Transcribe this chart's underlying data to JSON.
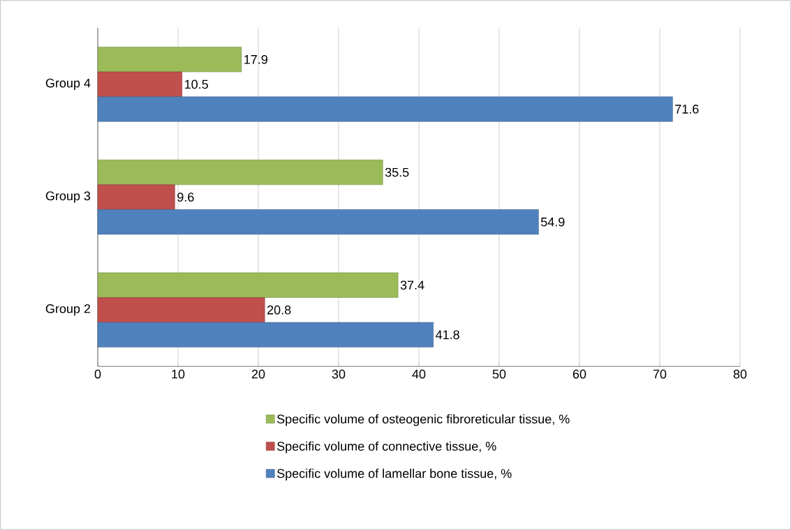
{
  "chart_data": {
    "type": "bar",
    "orientation": "horizontal",
    "categories": [
      "Group 4",
      "Group 3",
      "Group 2"
    ],
    "series": [
      {
        "name": "Specific volume of osteogenic fibroreticular tissue, %",
        "color": "#9bbb59",
        "values": [
          17.9,
          35.5,
          37.4
        ]
      },
      {
        "name": "Specific volume of connective tissue, %",
        "color": "#c0504d",
        "values": [
          10.5,
          9.6,
          20.8
        ]
      },
      {
        "name": "Specific volume of lamellar bone tissue, %",
        "color": "#4f81bd",
        "values": [
          71.6,
          54.9,
          41.8
        ]
      }
    ],
    "xlim": [
      0,
      80
    ],
    "xticks": [
      0,
      10,
      20,
      30,
      40,
      50,
      60,
      70,
      80
    ],
    "grid": "x",
    "legend": "bottom",
    "data_labels": true
  }
}
